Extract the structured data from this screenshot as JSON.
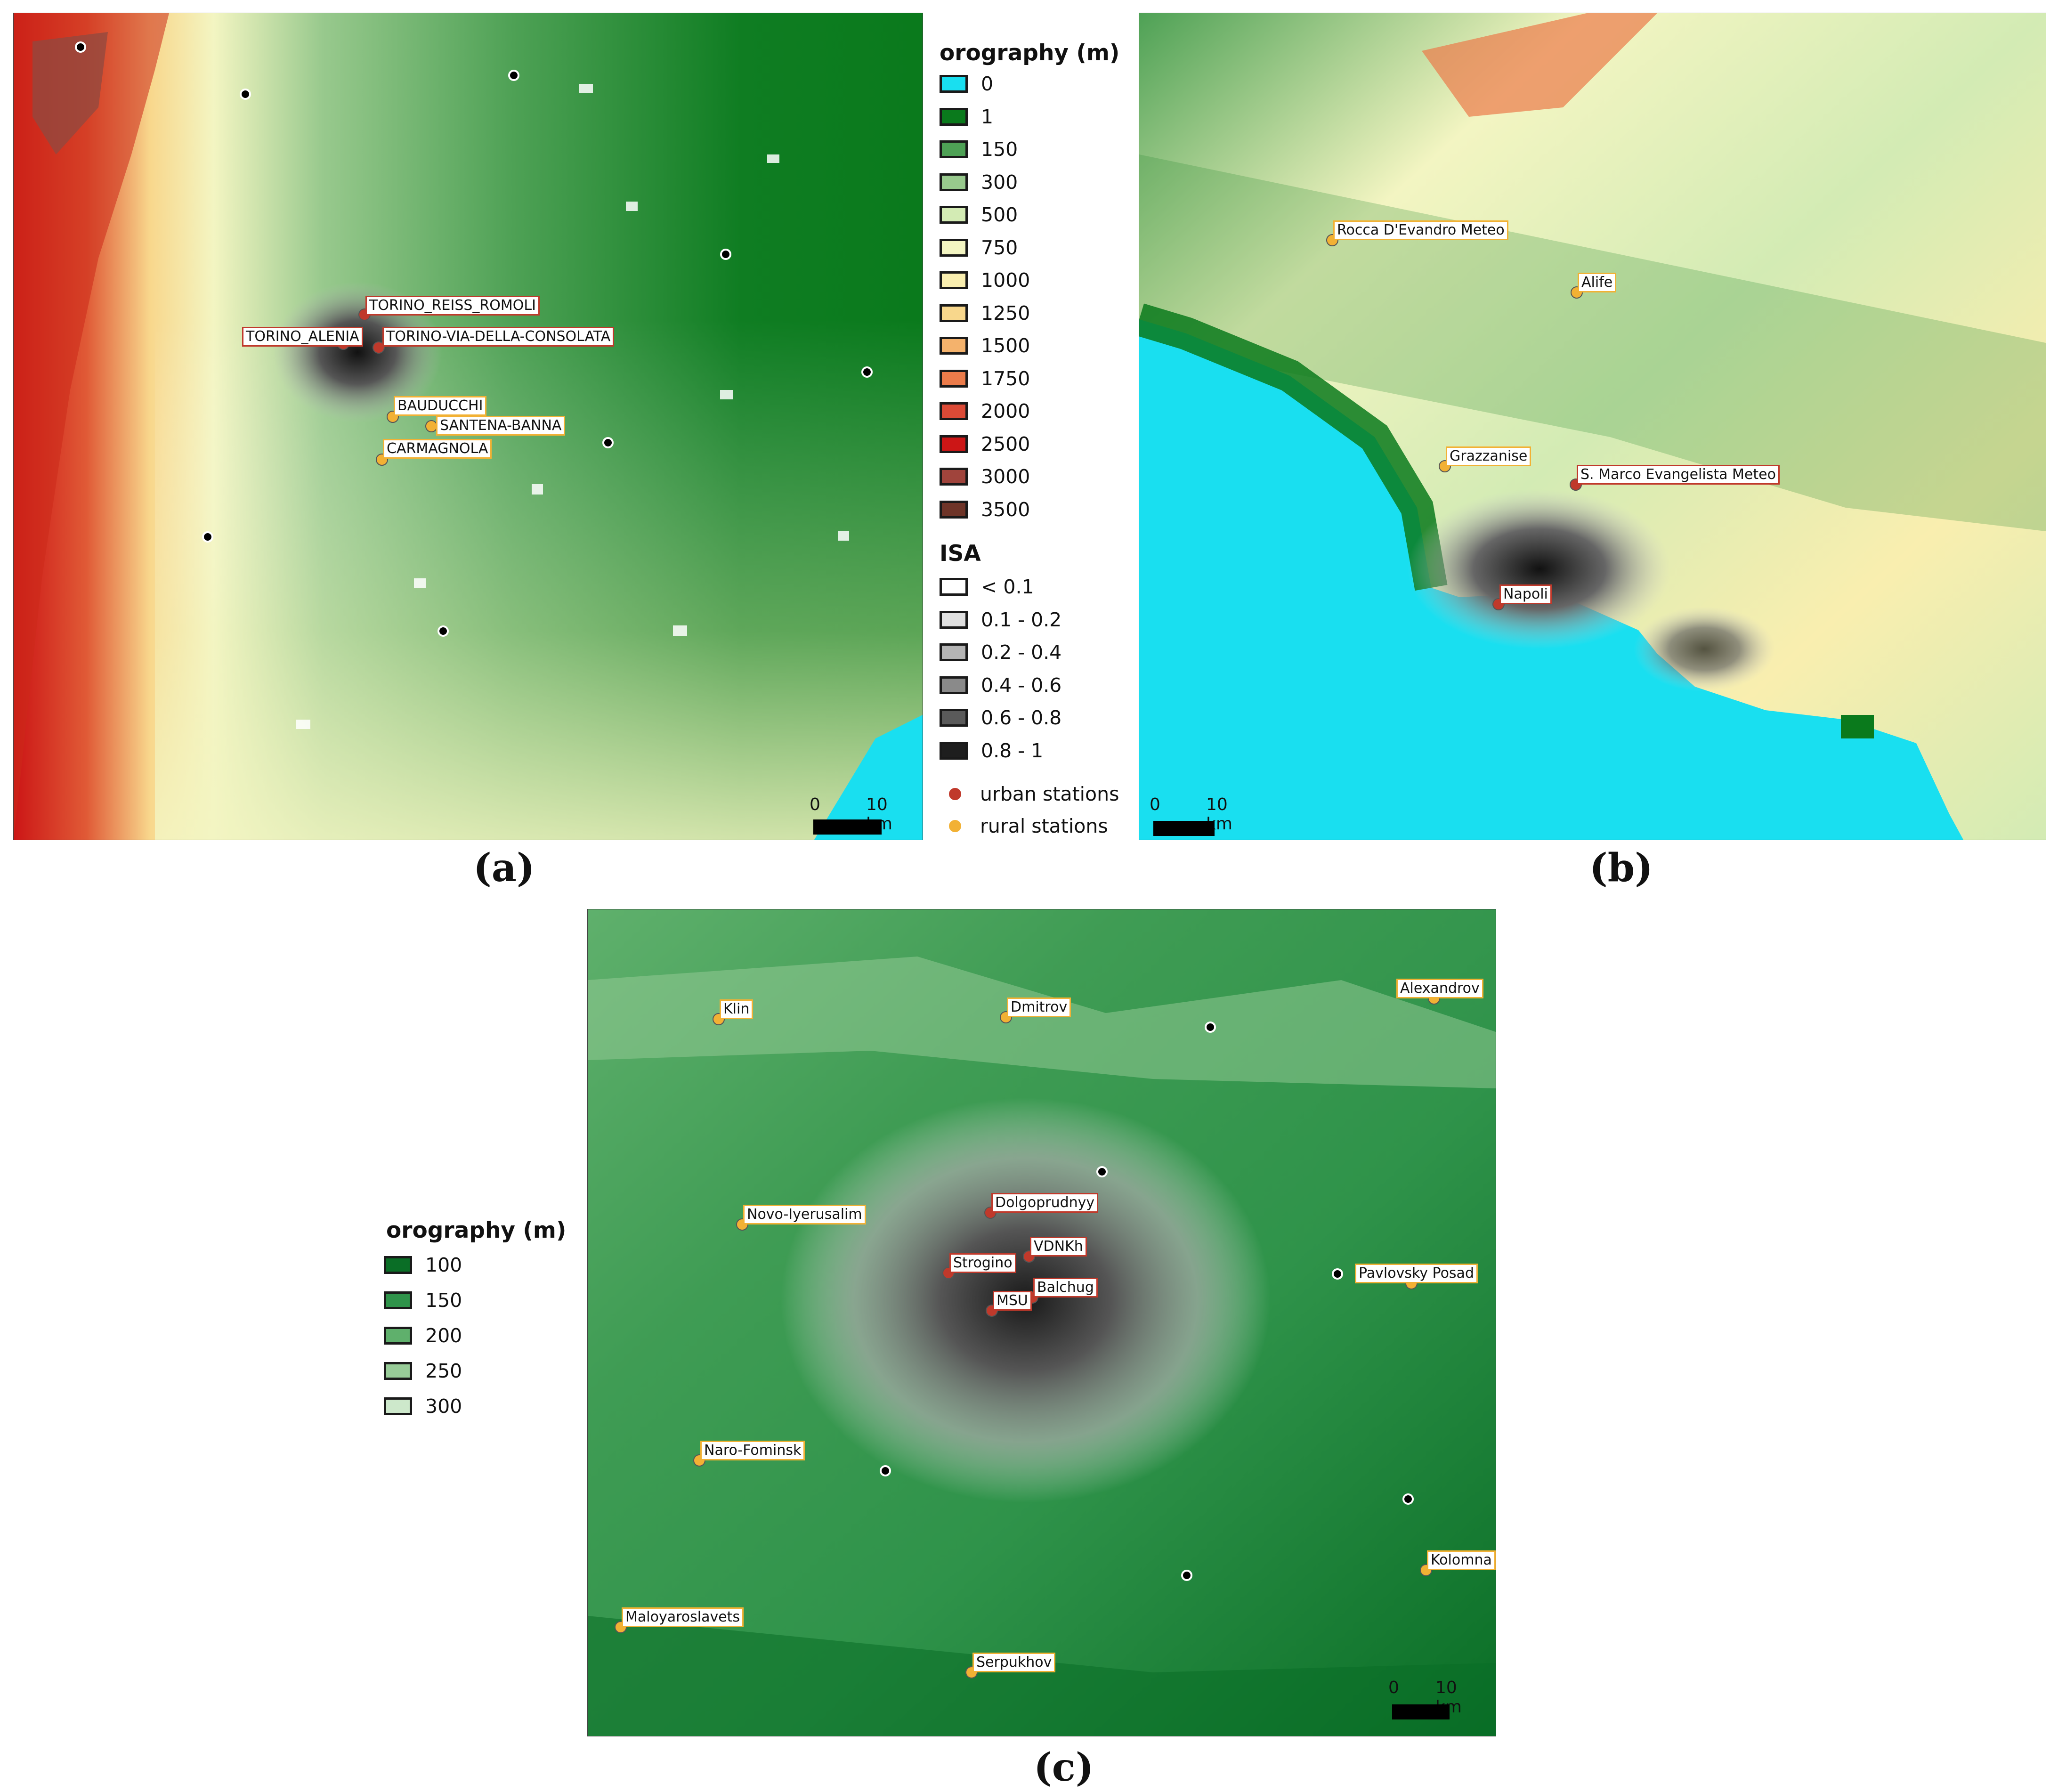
{
  "panels": {
    "a": {
      "label": "(a)",
      "scale": {
        "zero": "0",
        "text": "10 km"
      },
      "stations": [
        {
          "name": "TORINO_REISS_ROMOLI",
          "kind": "urban"
        },
        {
          "name": "TORINO_ALENIA",
          "kind": "urban"
        },
        {
          "name": "TORINO-VIA-DELLA-CONSOLATA",
          "kind": "urban"
        },
        {
          "name": "BAUDUCCHI",
          "kind": "rural"
        },
        {
          "name": "SANTENA-BANNA",
          "kind": "rural"
        },
        {
          "name": "CARMAGNOLA",
          "kind": "rural"
        }
      ]
    },
    "b": {
      "label": "(b)",
      "scale": {
        "zero": "0",
        "text": "10 km"
      },
      "stations": [
        {
          "name": "Rocca D'Evandro Meteo",
          "kind": "rural"
        },
        {
          "name": "Alife",
          "kind": "rural"
        },
        {
          "name": "Grazzanise",
          "kind": "rural"
        },
        {
          "name": "S. Marco Evangelista Meteo",
          "kind": "urban"
        },
        {
          "name": "Napoli",
          "kind": "urban"
        }
      ]
    },
    "c": {
      "label": "(c)",
      "scale": {
        "zero": "0",
        "text": "10 km"
      },
      "stations": [
        {
          "name": "Klin",
          "kind": "rural"
        },
        {
          "name": "Dmitrov",
          "kind": "rural"
        },
        {
          "name": "Alexandrov",
          "kind": "rural"
        },
        {
          "name": "Novo-Iyerusalim",
          "kind": "rural"
        },
        {
          "name": "Dolgoprudnyy",
          "kind": "urban"
        },
        {
          "name": "VDNKh",
          "kind": "urban"
        },
        {
          "name": "Strogino",
          "kind": "urban"
        },
        {
          "name": "Balchug",
          "kind": "urban"
        },
        {
          "name": "MSU",
          "kind": "urban"
        },
        {
          "name": "Pavlovsky Posad",
          "kind": "rural"
        },
        {
          "name": "Naro-Fominsk",
          "kind": "rural"
        },
        {
          "name": "Kolomna",
          "kind": "rural"
        },
        {
          "name": "Maloyaroslavets",
          "kind": "rural"
        },
        {
          "name": "Serpukhov",
          "kind": "rural"
        }
      ]
    }
  },
  "legend_main": {
    "orography_title": "orography (m)",
    "orography": [
      {
        "label": "0",
        "color": "#19dff0"
      },
      {
        "label": "1",
        "color": "#0a7a1c"
      },
      {
        "label": "150",
        "color": "#4ea155"
      },
      {
        "label": "300",
        "color": "#98c98d"
      },
      {
        "label": "500",
        "color": "#d3ebb4"
      },
      {
        "label": "750",
        "color": "#f3f5c2"
      },
      {
        "label": "1000",
        "color": "#f9eeaf"
      },
      {
        "label": "1250",
        "color": "#f8d78c"
      },
      {
        "label": "1500",
        "color": "#f4b26c"
      },
      {
        "label": "1750",
        "color": "#eb7b4a"
      },
      {
        "label": "2000",
        "color": "#dc4a36"
      },
      {
        "label": "2500",
        "color": "#cc1616"
      },
      {
        "label": "3000",
        "color": "#a0443c"
      },
      {
        "label": "3500",
        "color": "#6e3428"
      }
    ],
    "isa_title": "ISA",
    "isa": [
      {
        "label": "< 0.1",
        "color": "#ffffff"
      },
      {
        "label": "0.1 - 0.2",
        "color": "#e0e0e0"
      },
      {
        "label": "0.2 - 0.4",
        "color": "#b4b4b4"
      },
      {
        "label": "0.4 - 0.6",
        "color": "#8a8a8a"
      },
      {
        "label": "0.6 - 0.8",
        "color": "#5a5a5a"
      },
      {
        "label": "0.8 - 1",
        "color": "#1e1e1e"
      }
    ],
    "urban_label": "urban stations",
    "rural_label": "rural stations",
    "urban_color": "#c0392b",
    "rural_color": "#f2b134"
  },
  "legend_c": {
    "title": "orography (m)",
    "items": [
      {
        "label": "100",
        "color": "#0a6e26"
      },
      {
        "label": "150",
        "color": "#2f934a"
      },
      {
        "label": "200",
        "color": "#5fb06c"
      },
      {
        "label": "250",
        "color": "#98cc98"
      },
      {
        "label": "300",
        "color": "#cde8cb"
      }
    ]
  }
}
